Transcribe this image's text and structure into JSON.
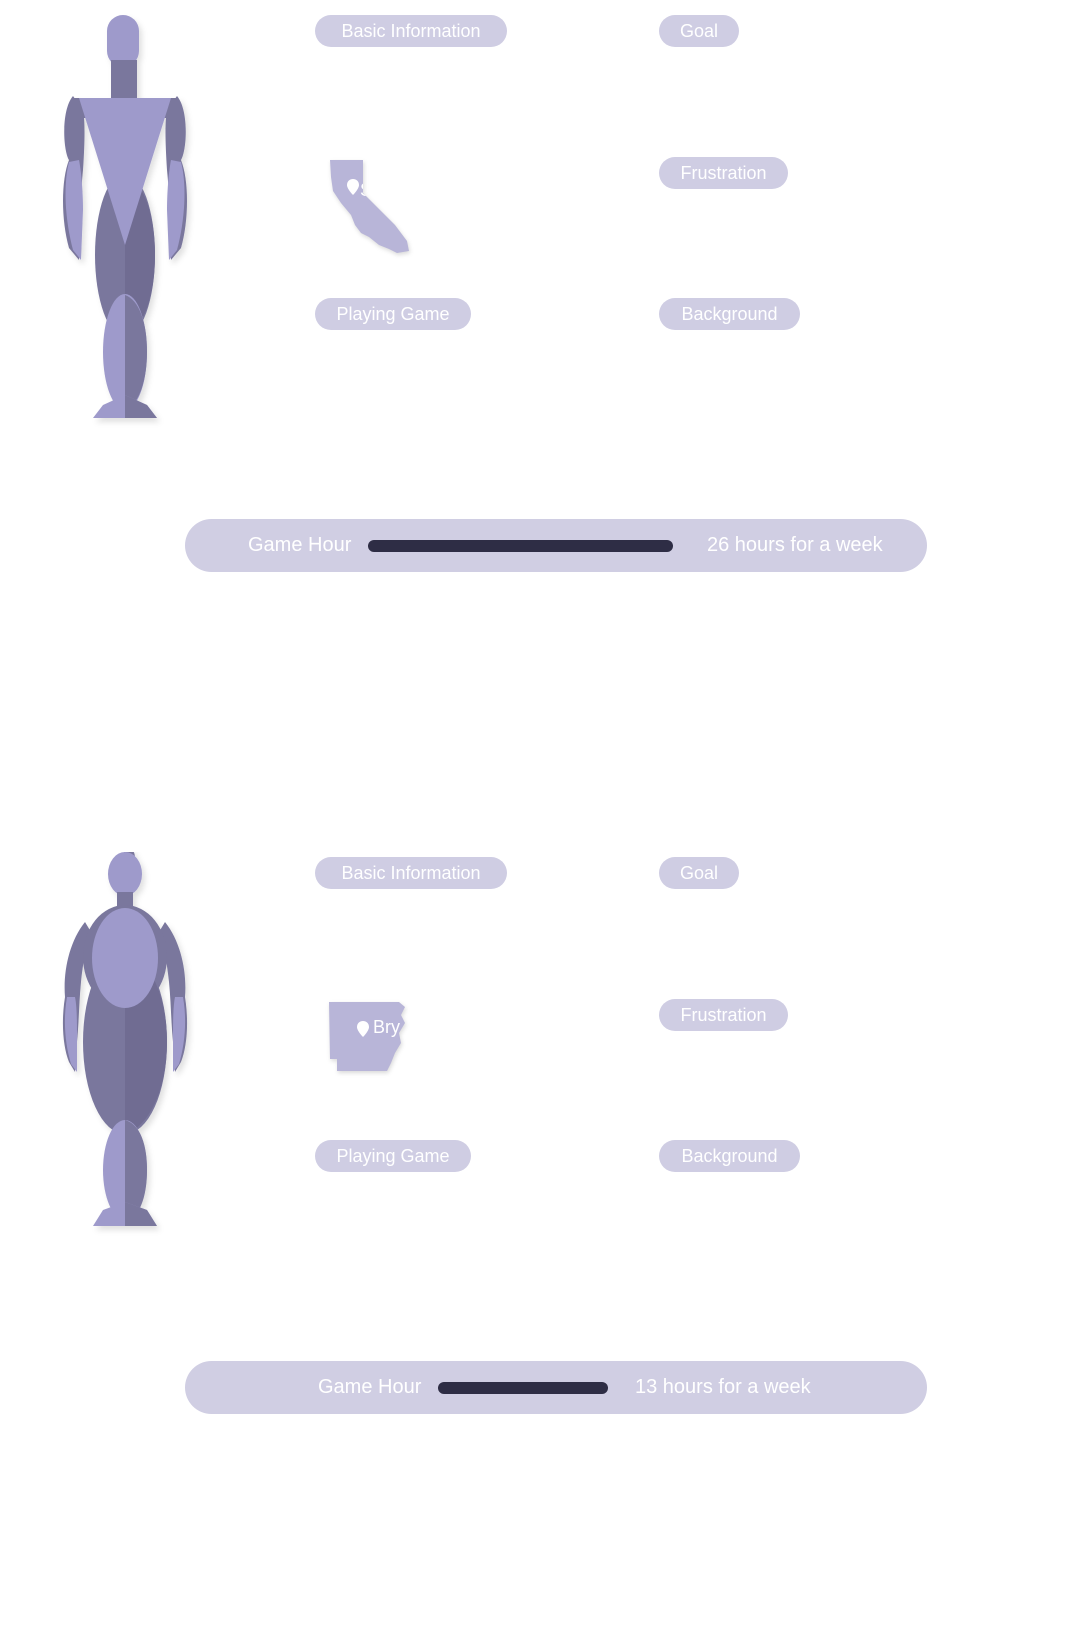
{
  "colors": {
    "pill_bg": "#cfcde3",
    "bar_bg": "#d0cee3",
    "track": "#2e2d45",
    "figure_light": "#9e9acb",
    "figure_dark": "#7a779d",
    "map_fill": "#b8b5d8"
  },
  "personas": [
    {
      "figure_icon": "male-figure-icon",
      "map_icon": "california-map-icon",
      "map_label": "Sa",
      "basic_label": "Basic Information",
      "goal_label": "Goal",
      "frustration_label": "Frustration",
      "playing_label": "Playing Game",
      "background_label": "Background",
      "game_hour_label": "Game Hour",
      "game_hour_value": "26 hours for a week",
      "game_hours_per_week": 26
    },
    {
      "figure_icon": "female-figure-icon",
      "map_icon": "arkansas-map-icon",
      "map_label": "Bry",
      "basic_label": "Basic Information",
      "goal_label": "Goal",
      "frustration_label": "Frustration",
      "playing_label": "Playing Game",
      "background_label": "Background",
      "game_hour_label": "Game Hour",
      "game_hour_value": "13 hours for a week",
      "game_hours_per_week": 13
    }
  ]
}
